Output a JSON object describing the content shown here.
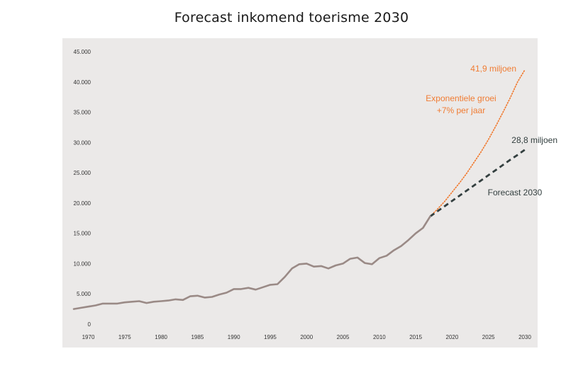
{
  "chart_data": {
    "type": "line",
    "title": "Forecast inkomend toerisme 2030",
    "xlabel": "",
    "ylabel": "",
    "xlim": [
      1968,
      2030
    ],
    "ylim": [
      0,
      45000
    ],
    "grid": false,
    "background_color": "#ebe9e8",
    "x_ticks": [
      "1970",
      "1975",
      "1980",
      "1985",
      "1990",
      "1995",
      "2000",
      "2005",
      "2010",
      "2015",
      "2020",
      "2025",
      "2030"
    ],
    "y_ticks": [
      "45.000",
      "40.000",
      "35.000",
      "30.000",
      "25.000",
      "20.000",
      "15.000",
      "10.000",
      "5.000",
      "0"
    ],
    "series": [
      {
        "style": "solid",
        "color": "#9a8a86",
        "x": [
          1968,
          1969,
          1970,
          1971,
          1972,
          1973,
          1974,
          1975,
          1976,
          1977,
          1978,
          1979,
          1980,
          1981,
          1982,
          1983,
          1984,
          1985,
          1986,
          1987,
          1988,
          1989,
          1990,
          1991,
          1992,
          1993,
          1994,
          1995,
          1996,
          1997,
          1998,
          1999,
          2000,
          2001,
          2002,
          2003,
          2004,
          2005,
          2006,
          2007,
          2008,
          2009,
          2010,
          2011,
          2012,
          2013,
          2014,
          2015,
          2016,
          2017
        ],
        "y": [
          2500,
          2700,
          2900,
          3100,
          3400,
          3400,
          3400,
          3600,
          3700,
          3800,
          3500,
          3700,
          3800,
          3900,
          4100,
          4000,
          4600,
          4700,
          4400,
          4500,
          4900,
          5200,
          5800,
          5800,
          6000,
          5700,
          6100,
          6500,
          6600,
          7800,
          9200,
          9900,
          10000,
          9500,
          9600,
          9200,
          9700,
          10000,
          10800,
          11000,
          10100,
          9900,
          10900,
          11300,
          12200,
          12900,
          13900,
          15000,
          15900,
          17800
        ]
      },
      {
        "name": "Forecast 2030",
        "style": "dashed",
        "color": "#333f3f",
        "x": [
          2017,
          2018,
          2019,
          2020,
          2021,
          2022,
          2023,
          2024,
          2025,
          2026,
          2027,
          2028,
          2029,
          2030
        ],
        "y": [
          17800,
          18650,
          19500,
          20350,
          21200,
          22050,
          22900,
          23750,
          24600,
          25450,
          26300,
          27150,
          27950,
          28800
        ]
      },
      {
        "name": "Exponentiele groei +7% per jaar",
        "style": "dotted",
        "color": "#f07c33",
        "x": [
          2017,
          2018,
          2019,
          2020,
          2021,
          2022,
          2023,
          2024,
          2025,
          2026,
          2027,
          2028,
          2029,
          2030
        ],
        "y": [
          17800,
          19000,
          20300,
          21800,
          23300,
          24900,
          26700,
          28500,
          30500,
          32700,
          35000,
          37400,
          40000,
          42000
        ]
      }
    ],
    "annotations": [
      {
        "text": "41,9 miljoen",
        "x": 2030,
        "y": 42000,
        "color": "#f07c33"
      },
      {
        "text": "Exponentiele groei",
        "color": "#f07c33"
      },
      {
        "text": "+7% per jaar",
        "color": "#f07c33"
      },
      {
        "text": "28,8 miljoen",
        "x": 2030,
        "y": 28800,
        "color": "#333f3f"
      },
      {
        "text": "Forecast 2030",
        "color": "#333f3f"
      }
    ]
  }
}
